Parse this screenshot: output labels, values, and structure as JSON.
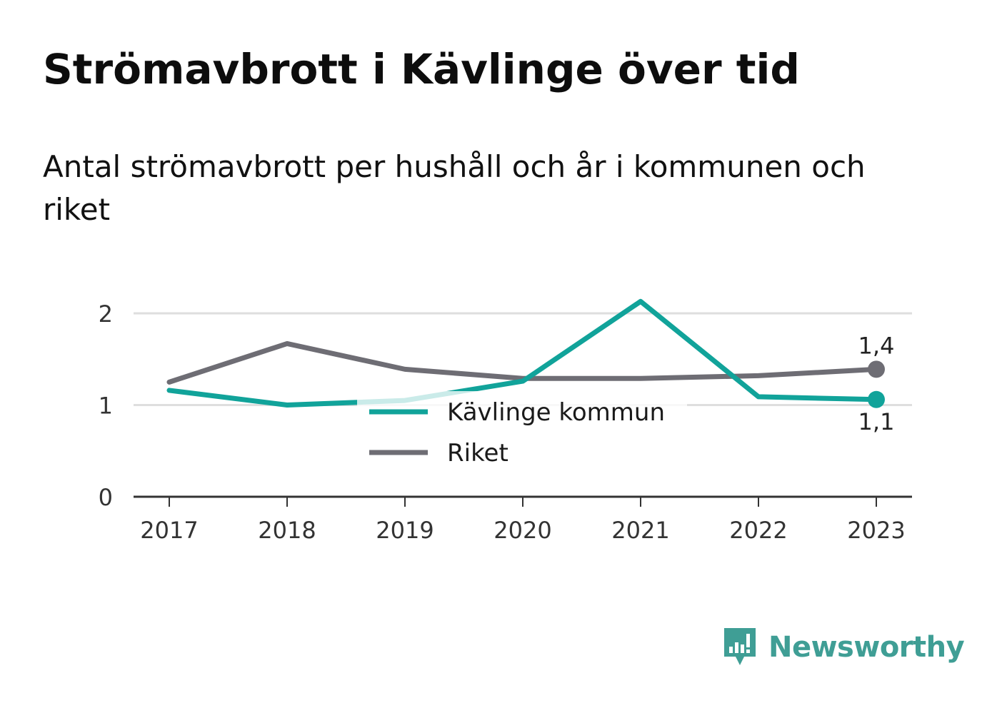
{
  "header": {
    "title": "Strömavbrott i Kävlinge över tid",
    "subtitle": "Antal strömavbrott per hushåll och år i kommunen och riket"
  },
  "brand": {
    "name": "Newsworthy",
    "icon": "newsworthy-logo-icon",
    "color": "#3f9e95"
  },
  "chart_data": {
    "type": "line",
    "title": "Strömavbrott i Kävlinge över tid",
    "subtitle": "Antal strömavbrott per hushåll och år i kommunen och riket",
    "xlabel": "",
    "ylabel": "",
    "x": [
      "2017",
      "2018",
      "2019",
      "2020",
      "2021",
      "2022",
      "2023"
    ],
    "ylim": [
      0,
      2.2
    ],
    "yticks": [
      0,
      1,
      2
    ],
    "ytick_labels": [
      "0",
      "1",
      "2"
    ],
    "grid": "horizontal",
    "legend_position": "center",
    "series": [
      {
        "name": "Kävlinge kommun",
        "color": "#11a39a",
        "values": [
          1.16,
          1.0,
          1.05,
          1.26,
          2.13,
          1.09,
          1.06
        ],
        "end_label": "1,1"
      },
      {
        "name": "Riket",
        "color": "#6e6d74",
        "values": [
          1.25,
          1.67,
          1.39,
          1.29,
          1.29,
          1.32,
          1.39
        ],
        "end_label": "1,4"
      }
    ]
  }
}
